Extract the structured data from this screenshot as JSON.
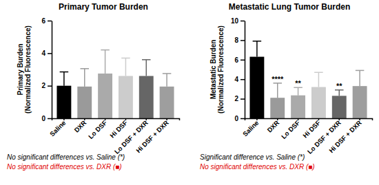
{
  "chart_data": [
    {
      "type": "bar",
      "title": "Primary Tumor Burden",
      "y_label": [
        "Primary Burden",
        "(Normalized Fluorescence)"
      ],
      "categories": [
        "Saline",
        "DXR",
        "Lo DSF",
        "Hi DSF",
        "Lo DSF + DXR",
        "Hi DSF + DXR"
      ],
      "values": [
        2.0,
        1.95,
        2.75,
        2.6,
        2.6,
        1.95
      ],
      "errors": [
        0.85,
        1.1,
        1.45,
        1.1,
        1.0,
        0.8
      ],
      "colors": [
        "#000000",
        "#9a9a9a",
        "#aaaaaa",
        "#cccccc",
        "#666666",
        "#9e9e9e"
      ],
      "ylim": [
        0,
        6
      ],
      "yticks": [
        0,
        2,
        4,
        6
      ],
      "significance": [
        null,
        null,
        null,
        null,
        null,
        null
      ],
      "annotations": [
        {
          "text": "No significant differences vs. Saline (*)",
          "color": "#000000"
        },
        {
          "text": "No significant differences vs. DXR (■)",
          "color": "#e00000"
        }
      ]
    },
    {
      "type": "bar",
      "title": "Metastatic Lung Tumor Burden",
      "y_label": [
        "Metastatic Burden",
        "(Normalized Fluorescence)"
      ],
      "categories": [
        "Saline",
        "DXR",
        "Lo DSF",
        "Hi DSF",
        "Lo DSF + DXR",
        "Hi DSF + DXR"
      ],
      "values": [
        6.3,
        2.1,
        2.35,
        3.2,
        2.3,
        3.3
      ],
      "errors": [
        1.6,
        1.5,
        0.8,
        1.5,
        0.6,
        1.6
      ],
      "colors": [
        "#000000",
        "#9a9a9a",
        "#aaaaaa",
        "#cccccc",
        "#666666",
        "#9e9e9e"
      ],
      "ylim": [
        0,
        10
      ],
      "yticks": [
        0,
        2,
        4,
        6,
        8,
        10
      ],
      "significance": [
        null,
        "****",
        "**",
        null,
        "**",
        null
      ],
      "annotations": [
        {
          "text": "Significant difference vs. Saline (*)",
          "color": "#000000"
        },
        {
          "text": "No significant differences vs. DXR (■)",
          "color": "#e00000"
        }
      ]
    }
  ]
}
